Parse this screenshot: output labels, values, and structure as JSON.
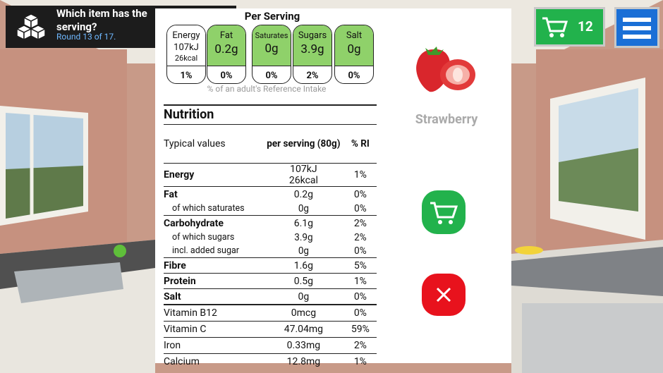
{
  "question": {
    "lines": [
      "Which item has the",
      "serving?"
    ],
    "round": "Round 13 of 17."
  },
  "cart": {
    "count": "12"
  },
  "per_serving": {
    "title": "Per Serving",
    "cells": [
      {
        "label": "Energy",
        "value": [
          "107kJ",
          "26kcal"
        ],
        "ri": "1%"
      },
      {
        "label": "Fat",
        "value": [
          "0.2g"
        ],
        "ri": "0%"
      },
      {
        "label": "Saturates",
        "value": [
          "0g"
        ],
        "ri": "0%"
      },
      {
        "label": "Sugars",
        "value": [
          "3.9g"
        ],
        "ri": "2%"
      },
      {
        "label": "Salt",
        "value": [
          "0g"
        ],
        "ri": "0%"
      }
    ],
    "footnote": "% of an adult's Reference Intake"
  },
  "nutrition": {
    "title": "Nutrition",
    "header": [
      "Typical values",
      "per serving (80g)",
      "% RI"
    ],
    "sections": [
      [
        {
          "label": "Energy",
          "value": [
            "107kJ",
            "26kcal"
          ],
          "ri": "1%"
        }
      ],
      [
        {
          "label": "Fat",
          "value": [
            "0.2g"
          ],
          "ri": "0%"
        },
        {
          "label": "of which saturates",
          "value": [
            "0g"
          ],
          "ri": "0%"
        }
      ],
      [
        {
          "label": "Carbohydrate",
          "value": [
            "6.1g"
          ],
          "ri": "2%"
        },
        {
          "label": "of which sugars",
          "value": [
            "3.9g"
          ],
          "ri": "2%"
        },
        {
          "label": "incl. added sugar",
          "value": [
            "0g"
          ],
          "ri": "0%"
        }
      ],
      [
        {
          "label": "Fibre",
          "value": [
            "1.6g"
          ],
          "ri": "5%"
        }
      ],
      [
        {
          "label": "Protein",
          "value": [
            "0.5g"
          ],
          "ri": "1%"
        }
      ],
      [
        {
          "label": "Salt",
          "value": [
            "0g"
          ],
          "ri": "0%"
        }
      ]
    ],
    "micronutrients": [
      {
        "label": "Vitamin B12",
        "value": [
          "0mcg"
        ],
        "ri": "0%"
      },
      {
        "label": "Vitamin C",
        "value": [
          "47.04mg"
        ],
        "ri": "59%"
      },
      {
        "label": "Iron",
        "value": [
          "0.33mg"
        ],
        "ri": "2%"
      },
      {
        "label": "Calcium",
        "value": [
          "12.8mg"
        ],
        "ri": "1%"
      }
    ]
  },
  "product": {
    "name": "Strawberry"
  }
}
